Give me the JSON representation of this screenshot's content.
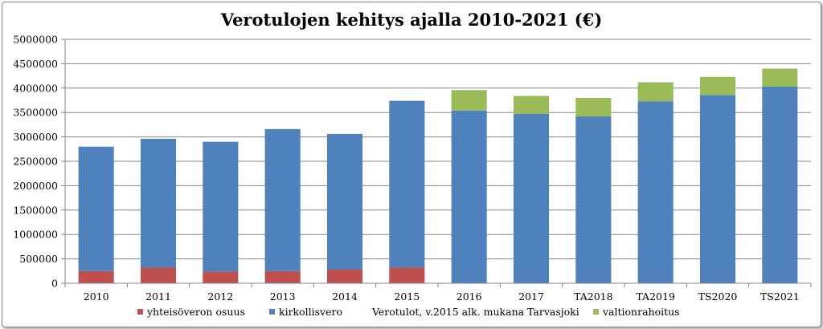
{
  "chart_data": {
    "type": "bar",
    "stacked": true,
    "title": "Verotulojen kehitys ajalla 2010-2021  (€)",
    "xlabel": "",
    "ylabel": "",
    "ylim": [
      0,
      5000000
    ],
    "ytick_step": 500000,
    "yticks": [
      "0",
      "500000",
      "1000000",
      "1500000",
      "2000000",
      "2500000",
      "3000000",
      "3500000",
      "4000000",
      "4500000",
      "5000000"
    ],
    "grid": true,
    "legend_position": "bottom",
    "categories": [
      "2010",
      "2011",
      "2012",
      "2013",
      "2014",
      "2015",
      "2016",
      "2017",
      "TA2018",
      "TA2019",
      "TS2020",
      "TS2021"
    ],
    "series": [
      {
        "name": "yhteisöveron osuus",
        "color": "#c0504d",
        "values": [
          250000,
          320000,
          240000,
          250000,
          280000,
          320000,
          0,
          0,
          0,
          0,
          0,
          0
        ]
      },
      {
        "name": "kirkollisvero",
        "color": "#4f81bd",
        "values": [
          2550000,
          2640000,
          2660000,
          2910000,
          2780000,
          3420000,
          3540000,
          3470000,
          3420000,
          3730000,
          3860000,
          4030000
        ]
      },
      {
        "name": "Verotulot, v.2015 alk. mukana Tarvasjoki",
        "color": "none",
        "values": [
          0,
          0,
          0,
          0,
          0,
          0,
          0,
          0,
          0,
          0,
          0,
          0
        ]
      },
      {
        "name": "valtionrahoitus",
        "color": "#9bbb59",
        "values": [
          0,
          0,
          0,
          0,
          0,
          0,
          420000,
          370000,
          380000,
          390000,
          370000,
          370000
        ]
      }
    ]
  }
}
